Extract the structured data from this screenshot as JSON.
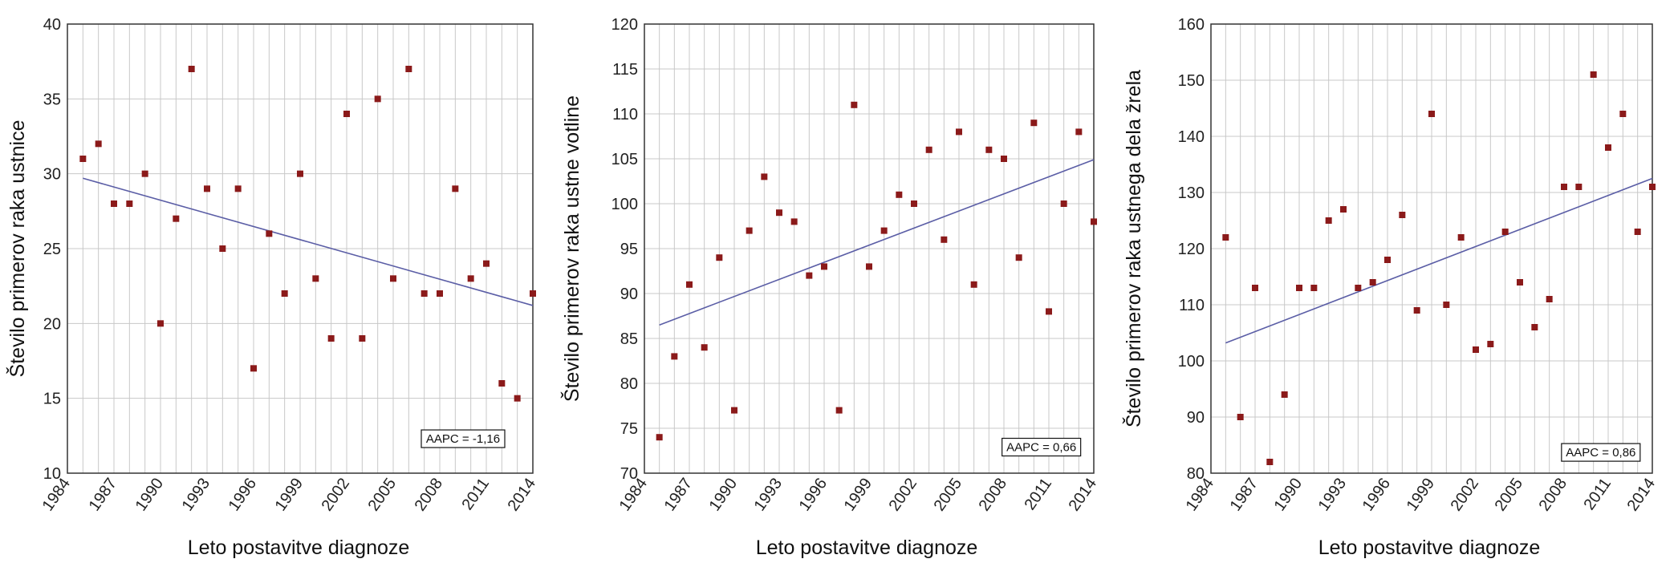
{
  "colors": {
    "point": "#8b1a1a",
    "trend": "#5b5ea6",
    "grid": "#c8c8c8",
    "frame": "#333333",
    "background": "#ffffff"
  },
  "chart_data": [
    {
      "type": "scatter",
      "title": "",
      "xlabel": "Leto postavitve diagnoze",
      "ylabel": "Število primerov raka ustnice",
      "xlim": [
        1984,
        2014
      ],
      "ylim": [
        10,
        40
      ],
      "xticks": [
        "1984",
        "1987",
        "1990",
        "1993",
        "1996",
        "1999",
        "2002",
        "2005",
        "2008",
        "2011",
        "2014"
      ],
      "yticks": [
        "10",
        "15",
        "20",
        "25",
        "30",
        "35",
        "40"
      ],
      "grid": true,
      "x": [
        1985,
        1986,
        1987,
        1988,
        1989,
        1990,
        1991,
        1992,
        1993,
        1994,
        1995,
        1996,
        1997,
        1998,
        1999,
        2000,
        2001,
        2002,
        2003,
        2004,
        2005,
        2006,
        2007,
        2008,
        2009,
        2010,
        2011,
        2012,
        2013,
        2014
      ],
      "y": [
        31,
        32,
        28,
        28,
        30,
        20,
        27,
        37,
        29,
        25,
        29,
        17,
        26,
        22,
        30,
        23,
        19,
        34,
        19,
        35,
        23,
        37,
        22,
        22,
        29,
        23,
        24,
        16,
        15,
        22
      ],
      "trend": {
        "x": [
          1985,
          2014
        ],
        "y": [
          29.7,
          21.2
        ]
      },
      "annotation": "AAPC = -1,16",
      "annotation_pos": {
        "x": 2009.5,
        "y": 12.3
      }
    },
    {
      "type": "scatter",
      "title": "",
      "xlabel": "Leto postavitve diagnoze",
      "ylabel": "Število primerov raka ustne votline",
      "xlim": [
        1984,
        2014
      ],
      "ylim": [
        70,
        120
      ],
      "xticks": [
        "1984",
        "1987",
        "1990",
        "1993",
        "1996",
        "1999",
        "2002",
        "2005",
        "2008",
        "2011",
        "2014"
      ],
      "yticks": [
        "70",
        "75",
        "80",
        "85",
        "90",
        "95",
        "100",
        "105",
        "110",
        "115",
        "120"
      ],
      "grid": true,
      "x": [
        1985,
        1986,
        1987,
        1988,
        1989,
        1990,
        1991,
        1992,
        1993,
        1994,
        1995,
        1996,
        1997,
        1998,
        1999,
        2000,
        2001,
        2002,
        2003,
        2004,
        2005,
        2006,
        2007,
        2008,
        2009,
        2010,
        2011,
        2012,
        2013,
        2014
      ],
      "y": [
        74,
        83,
        91,
        84,
        94,
        77,
        97,
        103,
        99,
        98,
        92,
        93,
        77,
        111,
        93,
        97,
        101,
        100,
        106,
        96,
        108,
        91,
        106,
        105,
        94,
        109,
        88,
        100,
        108,
        98
      ],
      "trend": {
        "x": [
          1985,
          2014
        ],
        "y": [
          86.5,
          104.9
        ]
      },
      "annotation": "AAPC = 0,66",
      "annotation_pos": {
        "x": 2010.5,
        "y": 72.9
      }
    },
    {
      "type": "scatter",
      "title": "",
      "xlabel": "Leto postavitve diagnoze",
      "ylabel": "Število primerov raka ustnega dela žrela",
      "xlim": [
        1984,
        2014
      ],
      "ylim": [
        80,
        160
      ],
      "xticks": [
        "1984",
        "1987",
        "1990",
        "1993",
        "1996",
        "1999",
        "2002",
        "2005",
        "2008",
        "2011",
        "2014"
      ],
      "yticks": [
        "80",
        "90",
        "100",
        "110",
        "120",
        "130",
        "140",
        "150",
        "160"
      ],
      "grid": true,
      "x": [
        1985,
        1986,
        1987,
        1988,
        1989,
        1990,
        1991,
        1992,
        1993,
        1994,
        1995,
        1996,
        1997,
        1998,
        1999,
        2000,
        2001,
        2002,
        2003,
        2004,
        2005,
        2006,
        2007,
        2008,
        2009,
        2010,
        2011,
        2012,
        2013,
        2014
      ],
      "y": [
        122,
        90,
        113,
        82,
        94,
        113,
        113,
        125,
        127,
        113,
        114,
        118,
        126,
        109,
        144,
        110,
        122,
        102,
        103,
        123,
        114,
        106,
        111,
        131,
        131,
        151,
        138,
        144,
        123,
        131
      ],
      "trend": {
        "x": [
          1985,
          2014
        ],
        "y": [
          103.2,
          132.5
        ]
      },
      "annotation": "AAPC = 0,86",
      "annotation_pos": {
        "x": 2010.5,
        "y": 83.7
      }
    }
  ]
}
